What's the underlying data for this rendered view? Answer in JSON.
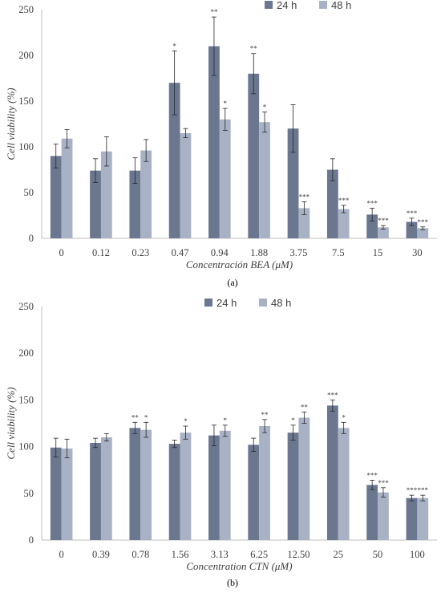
{
  "colors": {
    "h24": "#6b778f",
    "h48": "#a9b2c4",
    "axis": "#bfbfbf",
    "text": "#404040",
    "error": "#262626"
  },
  "chart_data": [
    {
      "type": "bar",
      "panel_label": "(a)",
      "xlabel": "Concentración BEA (μM)",
      "ylabel": "Cell viability (%)",
      "ylim": [
        0,
        250
      ],
      "yticks": [
        0,
        50,
        100,
        150,
        200,
        250
      ],
      "categories": [
        "0",
        "0.12",
        "0.23",
        "0.47",
        "0.94",
        "1.88",
        "3.75",
        "7.5",
        "15",
        "30"
      ],
      "grid": false,
      "legend_position": "top-right",
      "series": [
        {
          "name": "24 h",
          "values": [
            90,
            74,
            74,
            170,
            210,
            180,
            120,
            75,
            26,
            18
          ],
          "errors": [
            13,
            13,
            14,
            35,
            32,
            22,
            26,
            12,
            7,
            4
          ],
          "significance": [
            "",
            "",
            "",
            "*",
            "**",
            "**",
            "",
            "",
            "***",
            "***"
          ]
        },
        {
          "name": "48 h",
          "values": [
            109,
            95,
            96,
            115,
            130,
            127,
            33,
            32,
            12,
            11
          ],
          "errors": [
            10,
            16,
            12,
            5,
            12,
            11,
            7,
            4,
            2,
            1.5
          ],
          "significance": [
            "",
            "",
            "",
            "",
            "*",
            "*",
            "***",
            "***",
            "***",
            "***"
          ]
        }
      ]
    },
    {
      "type": "bar",
      "panel_label": "(b)",
      "xlabel": "Concentration CTN (μM)",
      "ylabel": "Cell viability (%)",
      "ylim": [
        0,
        250
      ],
      "yticks": [
        0,
        50,
        100,
        150,
        200,
        250
      ],
      "categories": [
        "0",
        "0.39",
        "0.78",
        "1.56",
        "3.13",
        "6.25",
        "12.50",
        "25",
        "50",
        "100"
      ],
      "grid": false,
      "legend_position": "top-center",
      "series": [
        {
          "name": "24 h",
          "values": [
            99,
            104,
            120,
            103,
            112,
            102,
            115,
            144,
            59,
            45
          ],
          "errors": [
            10,
            5,
            6,
            4,
            11,
            7,
            8,
            6,
            5,
            3
          ],
          "significance": [
            "",
            "",
            "**",
            "",
            "",
            "",
            "*",
            "***",
            "***",
            "***"
          ]
        },
        {
          "name": "48 h",
          "values": [
            98,
            110,
            118,
            115,
            117,
            122,
            131,
            120,
            51,
            45
          ],
          "errors": [
            10,
            4,
            8,
            7,
            6,
            7,
            6,
            6,
            5,
            3
          ],
          "significance": [
            "",
            "",
            "*",
            "*",
            "*",
            "**",
            "**",
            "*",
            "***",
            "***"
          ]
        }
      ]
    }
  ]
}
